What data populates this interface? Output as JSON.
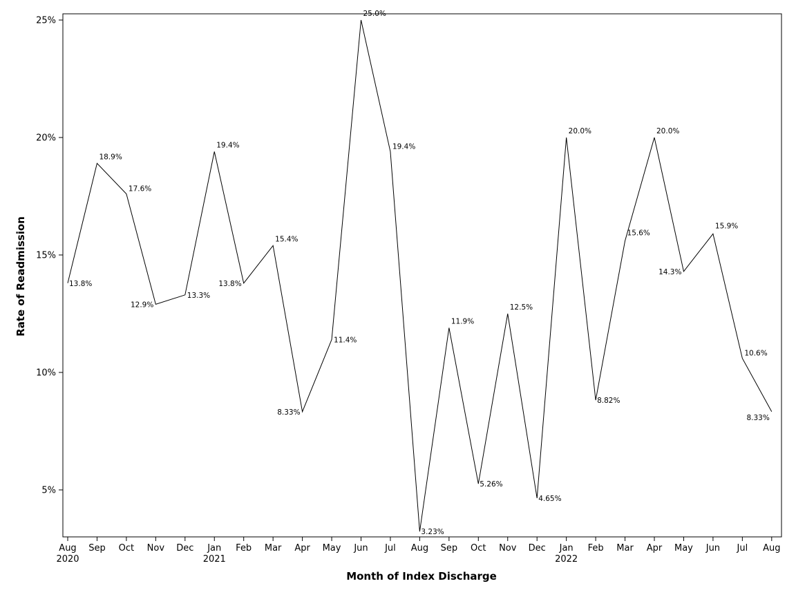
{
  "chart_data": {
    "type": "line",
    "xlabel": "Month of Index Discharge",
    "ylabel": "Rate of Readmission",
    "ylim": [
      3.0,
      25.25
    ],
    "yticks": [
      5,
      10,
      15,
      20,
      25
    ],
    "ytick_labels": [
      "5%",
      "10%",
      "15%",
      "20%",
      "25%"
    ],
    "grid": false,
    "legend": "none",
    "line_color": "#000000",
    "categories": [
      "2020-08",
      "2020-09",
      "2020-10",
      "2020-11",
      "2020-12",
      "2021-01",
      "2021-02",
      "2021-03",
      "2021-04",
      "2021-05",
      "2021-06",
      "2021-07",
      "2021-08",
      "2021-09",
      "2021-10",
      "2021-11",
      "2021-12",
      "2022-01",
      "2022-02",
      "2022-03",
      "2022-04",
      "2022-05",
      "2022-06",
      "2022-07",
      "2022-08"
    ],
    "tick_labels": [
      "Aug",
      "Sep",
      "Oct",
      "Nov",
      "Dec",
      "Jan",
      "Feb",
      "Mar",
      "Apr",
      "May",
      "Jun",
      "Jul",
      "Aug",
      "Sep",
      "Oct",
      "Nov",
      "Dec",
      "Jan",
      "Feb",
      "Mar",
      "Apr",
      "May",
      "Jun",
      "Jul",
      "Aug"
    ],
    "year_labels": [
      "2020",
      "",
      "",
      "",
      "",
      "2021",
      "",
      "",
      "",
      "",
      "",
      "",
      "",
      "",
      "",
      "",
      "",
      "2022",
      "",
      "",
      "",
      "",
      "",
      "",
      ""
    ],
    "values": [
      13.8,
      18.9,
      17.6,
      12.9,
      13.3,
      19.4,
      13.8,
      15.4,
      8.33,
      11.4,
      25.0,
      19.4,
      3.23,
      11.9,
      5.26,
      12.5,
      4.65,
      20.0,
      8.82,
      15.6,
      20.0,
      14.3,
      15.9,
      10.6,
      8.33
    ],
    "data_labels": [
      "13.8%",
      "18.9%",
      "17.6%",
      "12.9%",
      "13.3%",
      "19.4%",
      "13.8%",
      "15.4%",
      "8.33%",
      "11.4%",
      "25.0%",
      "19.4%",
      "3.23%",
      "11.9%",
      "5.26%",
      "12.5%",
      "4.65%",
      "20.0%",
      "8.82%",
      "15.6%",
      "20.0%",
      "14.3%",
      "15.9%",
      "10.6%",
      "8.33%"
    ]
  }
}
